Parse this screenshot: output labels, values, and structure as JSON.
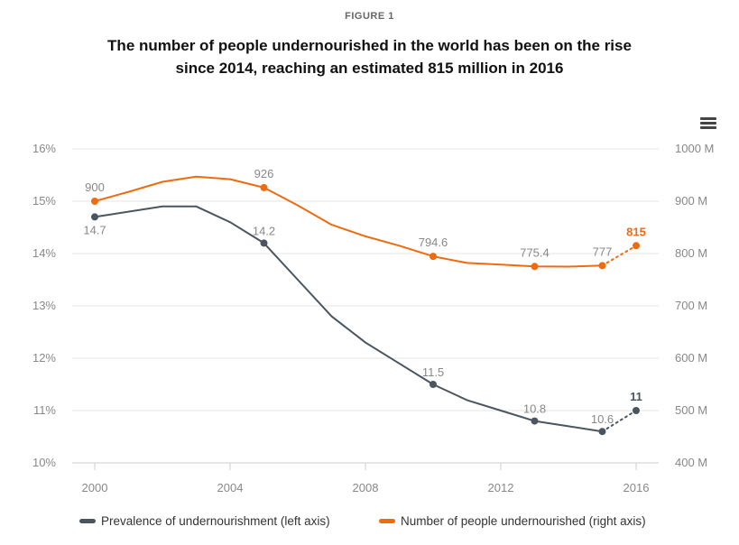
{
  "header": {
    "figure_label": "FIGURE 1",
    "title_line1": "The number of people undernourished in the world has been on the rise",
    "title_line2": "since 2014, reaching an estimated 815 million in 2016"
  },
  "toolbar": {
    "menu_icon": "hamburger-menu-icon"
  },
  "colors": {
    "prevalence": "#4a5560",
    "people": "#f06a0e",
    "grid": "#e6e6e6",
    "axis_text": "#888888"
  },
  "chart_data": {
    "type": "line",
    "x_ticks": [
      "2000",
      "2004",
      "2008",
      "2012",
      "2016"
    ],
    "x_range": [
      2000,
      2016
    ],
    "left_axis": {
      "range": [
        10,
        16
      ],
      "tick_labels": [
        "10%",
        "11%",
        "12%",
        "13%",
        "14%",
        "15%",
        "16%"
      ]
    },
    "right_axis": {
      "range": [
        400,
        1000
      ],
      "tick_labels": [
        "400 M",
        "500 M",
        "600 M",
        "700 M",
        "800 M",
        "900 M",
        "1000 M"
      ]
    },
    "series": [
      {
        "name": "Prevalence of undernourishment (left axis)",
        "axis": "left",
        "x": [
          2000,
          2002,
          2003,
          2004,
          2005,
          2006,
          2007,
          2008,
          2009,
          2010,
          2011,
          2012,
          2013,
          2014,
          2015,
          2016
        ],
        "y": [
          14.7,
          14.9,
          14.9,
          14.6,
          14.2,
          13.5,
          12.8,
          12.3,
          11.9,
          11.5,
          11.2,
          11.0,
          10.8,
          10.7,
          10.6,
          11.0
        ],
        "labels": [
          {
            "x": 2000,
            "text": "14.7"
          },
          {
            "x": 2005,
            "text": "14.2"
          },
          {
            "x": 2010,
            "text": "11.5"
          },
          {
            "x": 2013,
            "text": "10.8"
          },
          {
            "x": 2015,
            "text": "10.6"
          },
          {
            "x": 2016,
            "text": "11"
          }
        ],
        "markers": [
          2000,
          2005,
          2010,
          2013,
          2015,
          2016
        ],
        "projected_from": 2015
      },
      {
        "name": "Number of people undernourished (right axis)",
        "axis": "right",
        "x": [
          2000,
          2001,
          2002,
          2003,
          2004,
          2005,
          2006,
          2007,
          2008,
          2009,
          2010,
          2011,
          2012,
          2013,
          2014,
          2015,
          2016
        ],
        "y": [
          900,
          918,
          937,
          947,
          942,
          926,
          892,
          855,
          833,
          815,
          794.6,
          782,
          779,
          775.4,
          775,
          777,
          815
        ],
        "labels": [
          {
            "x": 2000,
            "text": "900"
          },
          {
            "x": 2005,
            "text": "926"
          },
          {
            "x": 2010,
            "text": "794.6"
          },
          {
            "x": 2013,
            "text": "775.4"
          },
          {
            "x": 2015,
            "text": "777"
          },
          {
            "x": 2016,
            "text": "815"
          }
        ],
        "markers": [
          2000,
          2005,
          2010,
          2013,
          2015,
          2016
        ],
        "projected_from": 2015
      }
    ],
    "grid": true,
    "legend_position": "bottom"
  }
}
